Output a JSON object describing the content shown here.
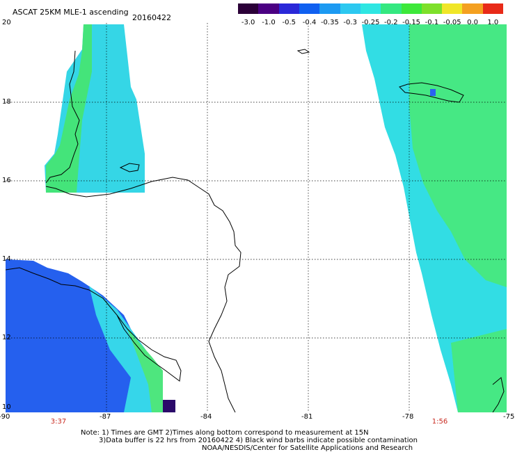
{
  "header": {
    "title": "ASCAT 25KM MLE-1 ascending",
    "date": "20160422"
  },
  "colorbar": {
    "labels": [
      "-3.0",
      "-1.0",
      "-0.5",
      "-0.4",
      "-0.35",
      "-0.3",
      "-0.25",
      "-0.2",
      "-0.15",
      "-0.1",
      "-0.05",
      "0.0",
      "1.0"
    ],
    "colors": [
      "#2b0038",
      "#4b0082",
      "#2a28d8",
      "#1060f0",
      "#1c9af2",
      "#2cc8f0",
      "#2ee6e2",
      "#34e880",
      "#3de83a",
      "#7ee02a",
      "#f0e628",
      "#f4a020",
      "#e82a18"
    ]
  },
  "axes": {
    "x_labels": [
      "-90",
      "-87",
      "-84",
      "-81",
      "-78",
      "-75"
    ],
    "y_labels": [
      "20",
      "18",
      "16",
      "14",
      "12",
      "10"
    ]
  },
  "pass_times": [
    "3:37",
    "1:56"
  ],
  "notes": {
    "line1": "Note: 1) Times are GMT  2)Times along bottom correspond to measurement at 15N",
    "line2": "3)Data buffer is 22 hrs from 20160422  4) Black wind barbs indicate possible contamination",
    "line3": "NOAA/NESDIS/Center for Satellite Applications and Research"
  },
  "map_colors": {
    "swath_blue": "#1f5ef0",
    "swath_cyan": "#22e6ea",
    "swath_green": "#3ee87a",
    "coastline": "#000000",
    "grid": "#000000",
    "time_text": "#c8281e"
  }
}
